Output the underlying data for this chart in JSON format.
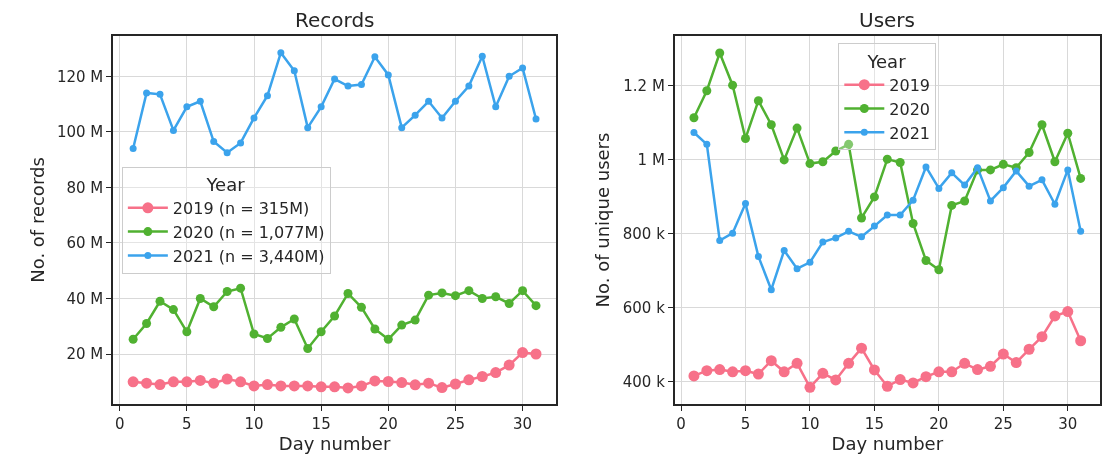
{
  "chart_data": [
    {
      "type": "line",
      "title": "Records",
      "xlabel": "Day number",
      "ylabel": "No. of records",
      "legend_title": "Year",
      "legend": "center left",
      "grid": true,
      "marker": "circle",
      "line_style": "solid",
      "x": [
        1,
        2,
        3,
        4,
        5,
        6,
        7,
        8,
        9,
        10,
        11,
        12,
        13,
        14,
        15,
        16,
        17,
        18,
        19,
        20,
        21,
        22,
        23,
        24,
        25,
        26,
        27,
        28,
        29,
        30,
        31
      ],
      "xlim": [
        -0.5,
        32.5
      ],
      "xticks": [
        0,
        5,
        10,
        15,
        20,
        25,
        30
      ],
      "ylim": [
        2000000,
        134500000
      ],
      "yticks": [
        {
          "value": 20000000,
          "label": "20 M"
        },
        {
          "value": 40000000,
          "label": "40 M"
        },
        {
          "value": 60000000,
          "label": "60 M"
        },
        {
          "value": 80000000,
          "label": "80 M"
        },
        {
          "value": 100000000,
          "label": "100 M"
        },
        {
          "value": 120000000,
          "label": "120 M"
        }
      ],
      "series": [
        {
          "name": "2019 (n = 315M)",
          "color": "#f77189",
          "values": [
            10000000,
            9500000,
            9000000,
            10000000,
            10000000,
            10500000,
            9500000,
            11000000,
            10000000,
            8500000,
            9000000,
            8500000,
            8500000,
            8500000,
            8200000,
            8200000,
            7800000,
            8500000,
            10300000,
            10100000,
            9700000,
            8900000,
            9500000,
            7900000,
            9200000,
            10700000,
            11900000,
            13300000,
            16000000,
            20500000,
            20000000
          ]
        },
        {
          "name": "2020 (n = 1,077M)",
          "color": "#50b131",
          "values": [
            25300000,
            31000000,
            39000000,
            36000000,
            28000000,
            40000000,
            37000000,
            42500000,
            43700000,
            27200000,
            25600000,
            29600000,
            32600000,
            22000000,
            28000000,
            33700000,
            41800000,
            36800000,
            29000000,
            25300000,
            30400000,
            32200000,
            41200000,
            42000000,
            41000000,
            42800000,
            40000000,
            40600000,
            38200000,
            42800000,
            37400000
          ]
        },
        {
          "name": "2021 (n = 3,440M)",
          "color": "#3ba3ec",
          "values": [
            94000000,
            114000000,
            113500000,
            100500000,
            109000000,
            111000000,
            96500000,
            92500000,
            96000000,
            105000000,
            113000000,
            128500000,
            122000000,
            101500000,
            109000000,
            119000000,
            116500000,
            117000000,
            127000000,
            120500000,
            101500000,
            106000000,
            111000000,
            105000000,
            111000000,
            116500000,
            127200000,
            109000000,
            120000000,
            123000000,
            104600000
          ]
        }
      ]
    },
    {
      "type": "line",
      "title": "Users",
      "xlabel": "Day number",
      "ylabel": "No. of unique users",
      "legend_title": "Year",
      "legend": "top",
      "grid": true,
      "marker": "circle",
      "line_style": "solid",
      "x": [
        1,
        2,
        3,
        4,
        5,
        6,
        7,
        8,
        9,
        10,
        11,
        12,
        13,
        14,
        15,
        16,
        17,
        18,
        19,
        20,
        21,
        22,
        23,
        24,
        25,
        26,
        27,
        28,
        29,
        30,
        31
      ],
      "xlim": [
        -0.5,
        32.5
      ],
      "xticks": [
        0,
        5,
        10,
        15,
        20,
        25,
        30
      ],
      "ylim": [
        340000,
        1335000
      ],
      "yticks": [
        {
          "value": 400000,
          "label": "400 k"
        },
        {
          "value": 600000,
          "label": "600 k"
        },
        {
          "value": 800000,
          "label": "800 k"
        },
        {
          "value": 1000000,
          "label": "1 M"
        },
        {
          "value": 1200000,
          "label": "1.2 M"
        }
      ],
      "series": [
        {
          "name": "2019",
          "color": "#f77189",
          "values": [
            416000,
            430000,
            433000,
            427000,
            430000,
            421000,
            457000,
            427000,
            450000,
            385000,
            423000,
            405000,
            450000,
            491000,
            432000,
            388000,
            406000,
            397000,
            414000,
            427000,
            427000,
            450000,
            433000,
            442000,
            475000,
            452000,
            488000,
            522000,
            578000,
            590000,
            511000
          ]
        },
        {
          "name": "2020",
          "color": "#50b131",
          "values": [
            1114000,
            1187000,
            1289000,
            1202000,
            1058000,
            1160000,
            1095000,
            1000000,
            1086000,
            990000,
            995000,
            1024000,
            1042000,
            843000,
            900000,
            1002000,
            993000,
            828000,
            728000,
            703000,
            877000,
            889000,
            973000,
            973000,
            988000,
            979000,
            1020000,
            1095000,
            995000,
            1072000,
            950000
          ]
        },
        {
          "name": "2021",
          "color": "#3ba3ec",
          "values": [
            1074000,
            1042000,
            782000,
            802000,
            882000,
            739000,
            649000,
            755000,
            706000,
            723000,
            778000,
            789000,
            807000,
            792000,
            821000,
            851000,
            851000,
            891000,
            981000,
            923000,
            965000,
            932000,
            979000,
            889000,
            925000,
            970000,
            929000,
            946000,
            880000,
            973000,
            807000
          ]
        }
      ]
    }
  ]
}
